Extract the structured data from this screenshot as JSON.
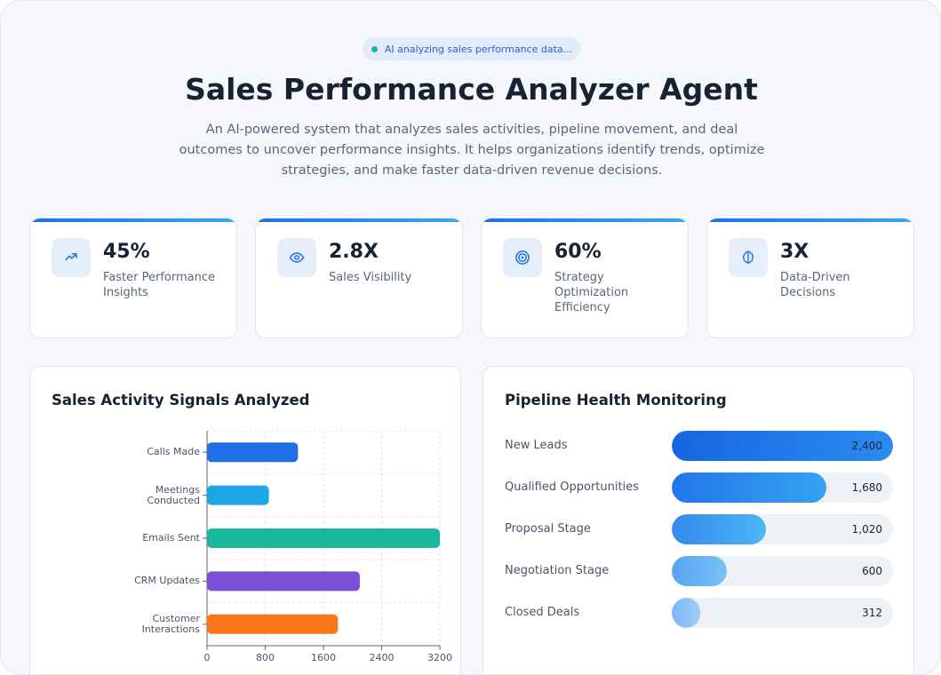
{
  "badge": "AI analyzing sales performance data...",
  "title": "Sales Performance Analyzer Agent",
  "description": "An AI-powered system that analyzes sales activities, pipeline movement, and deal outcomes to uncover performance insights. It helps organizations identify trends, optimize strategies, and make faster data-driven revenue decisions.",
  "stats": [
    {
      "value": "45%",
      "label": "Faster Performance Insights"
    },
    {
      "value": "2.8X",
      "label": "Sales Visibility"
    },
    {
      "value": "60%",
      "label": "Strategy Optimization Efficiency"
    },
    {
      "value": "3X",
      "label": "Data-Driven Decisions"
    }
  ],
  "chart_data": [
    {
      "type": "bar",
      "orientation": "horizontal",
      "title": "Sales Activity Signals Analyzed",
      "categories": [
        "Calls Made",
        "Meetings Conducted",
        "Emails Sent",
        "CRM Updates",
        "Customer Interactions"
      ],
      "values": [
        1250,
        850,
        3200,
        2100,
        1800
      ],
      "colors": [
        "#1f6fe5",
        "#1ea5e6",
        "#1bb89d",
        "#7b4fd6",
        "#f7771a"
      ],
      "xlim": [
        0,
        3200
      ],
      "xticks": [
        0,
        800,
        1600,
        2400,
        3200
      ],
      "grid": true
    },
    {
      "type": "progress",
      "title": "Pipeline Health Monitoring",
      "categories": [
        "New Leads",
        "Qualified Opportunities",
        "Proposal Stage",
        "Negotiation Stage",
        "Closed Deals"
      ],
      "values": [
        2400,
        1680,
        1020,
        600,
        312
      ],
      "value_labels": [
        "2,400",
        "1,680",
        "1,020",
        "600",
        "312"
      ]
    }
  ]
}
